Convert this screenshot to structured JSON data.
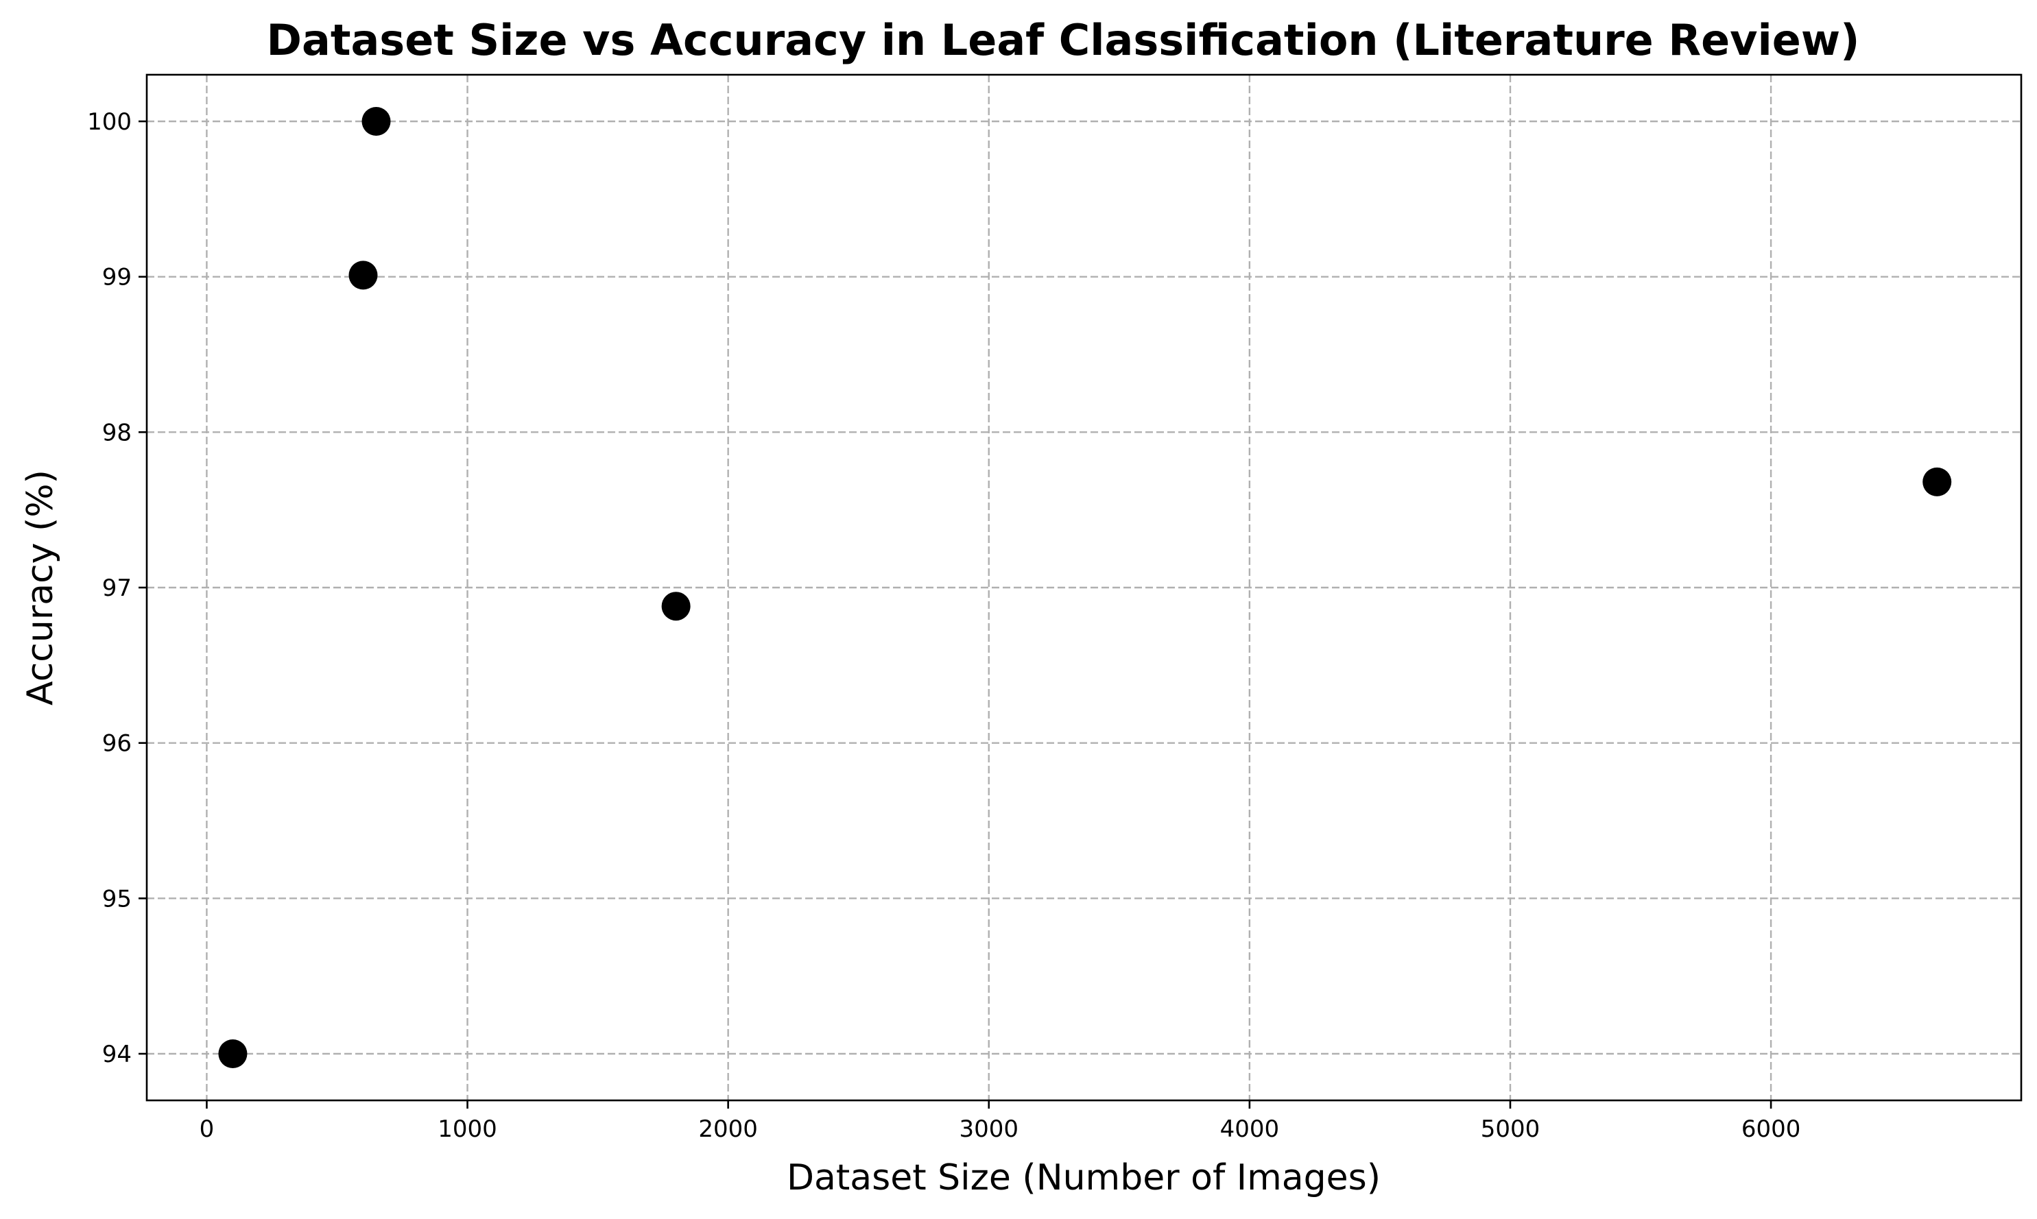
{
  "chart_data": {
    "type": "scatter",
    "title": "Dataset Size vs Accuracy in Leaf Classification (Literature Review)",
    "xlabel": "Dataset Size (Number of Images)",
    "ylabel": "Accuracy (%)",
    "xlim": [
      -230,
      6960
    ],
    "ylim": [
      93.7,
      100.3
    ],
    "xticks": [
      0,
      1000,
      2000,
      3000,
      4000,
      5000,
      6000
    ],
    "yticks": [
      94,
      95,
      96,
      97,
      98,
      99,
      100
    ],
    "grid": true,
    "legend": "none",
    "marker_color": "#000000",
    "points": [
      {
        "x": 100,
        "y": 94.0
      },
      {
        "x": 600,
        "y": 99.01
      },
      {
        "x": 650,
        "y": 100.0
      },
      {
        "x": 1800,
        "y": 96.88
      },
      {
        "x": 6637,
        "y": 97.68
      }
    ]
  }
}
